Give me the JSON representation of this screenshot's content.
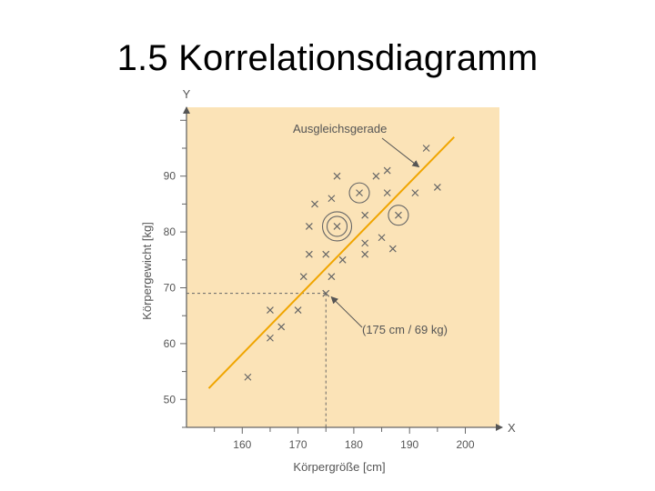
{
  "slide": {
    "title": "1.5 Korrelationsdiagramm"
  },
  "colors": {
    "plot_background": "#fbe3b7",
    "regression_line": "#f0a500",
    "marker": "#666666",
    "axis": "#666666",
    "text": "#555555"
  },
  "chart_data": {
    "type": "scatter",
    "xlabel": "Körpergröße [cm]",
    "ylabel": "Körpergewicht [kg]",
    "x_axis_letter": "X",
    "y_axis_letter": "Y",
    "xlim": [
      150,
      202
    ],
    "ylim": [
      45,
      103
    ],
    "x_ticks": [
      160,
      170,
      180,
      190,
      200
    ],
    "y_ticks": [
      50,
      60,
      70,
      80,
      90
    ],
    "grid": false,
    "points": [
      {
        "x": 161,
        "y": 54
      },
      {
        "x": 165,
        "y": 61
      },
      {
        "x": 165,
        "y": 66
      },
      {
        "x": 167,
        "y": 63
      },
      {
        "x": 170,
        "y": 66
      },
      {
        "x": 171,
        "y": 72
      },
      {
        "x": 172,
        "y": 76
      },
      {
        "x": 172,
        "y": 81
      },
      {
        "x": 173,
        "y": 85
      },
      {
        "x": 175,
        "y": 69
      },
      {
        "x": 175,
        "y": 76
      },
      {
        "x": 176,
        "y": 72
      },
      {
        "x": 176,
        "y": 86
      },
      {
        "x": 177,
        "y": 81
      },
      {
        "x": 177,
        "y": 90
      },
      {
        "x": 178,
        "y": 75
      },
      {
        "x": 181,
        "y": 87
      },
      {
        "x": 182,
        "y": 83
      },
      {
        "x": 182,
        "y": 78
      },
      {
        "x": 182,
        "y": 76
      },
      {
        "x": 184,
        "y": 90
      },
      {
        "x": 185,
        "y": 79
      },
      {
        "x": 186,
        "y": 87
      },
      {
        "x": 186,
        "y": 91
      },
      {
        "x": 187,
        "y": 77
      },
      {
        "x": 188,
        "y": 83
      },
      {
        "x": 191,
        "y": 87
      },
      {
        "x": 193,
        "y": 95
      },
      {
        "x": 195,
        "y": 88
      }
    ],
    "circled_points": [
      {
        "x": 177,
        "y": 81,
        "rings": 2
      },
      {
        "x": 181,
        "y": 87,
        "rings": 1
      },
      {
        "x": 188,
        "y": 83,
        "rings": 1
      }
    ],
    "regression_line": {
      "x1": 154,
      "y1": 52,
      "x2": 198,
      "y2": 97
    },
    "annotations": [
      {
        "text": "Ausgleichsgerade",
        "target": {
          "x": 192,
          "y": 91
        }
      },
      {
        "text": "(175 cm / 69 kg)",
        "target": {
          "x": 175,
          "y": 69
        }
      }
    ],
    "reference_point": {
      "x": 175,
      "y": 69
    }
  }
}
